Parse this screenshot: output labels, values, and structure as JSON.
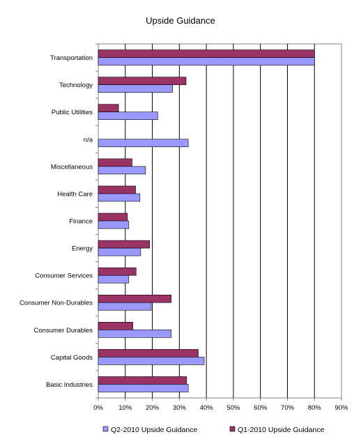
{
  "chart_data": {
    "type": "bar",
    "orientation": "horizontal",
    "title": "Upside Guidance",
    "xlabel": "",
    "ylabel": "",
    "xlim": [
      0,
      90
    ],
    "x_ticks": [
      "0%",
      "10%",
      "20%",
      "30%",
      "40%",
      "50%",
      "60%",
      "70%",
      "80%",
      "90%"
    ],
    "grid": "vertical",
    "legend_position": "bottom",
    "categories": [
      "Transportation",
      "Technology",
      "Public Utilities",
      "n/a",
      "Miscellaneous",
      "Health Care",
      "Finance",
      "Energy",
      "Consumer Services",
      "Consumer Non-Durables",
      "Consumer Durables",
      "Capital Goods",
      "Basic Industries"
    ],
    "series": [
      {
        "name": "Q1-2010 Upside Guidance",
        "color": "#993366",
        "values": [
          80,
          32.5,
          7.5,
          null,
          12.5,
          13.8,
          10.8,
          19,
          14,
          27,
          12.8,
          37,
          32.7
        ]
      },
      {
        "name": "Q2-2010 Upside Guidance",
        "color": "#9999ff",
        "values": [
          80,
          27.5,
          22,
          33.3,
          17.5,
          15.4,
          11.3,
          15.7,
          11.3,
          19.6,
          27,
          39.2,
          33.3
        ]
      }
    ],
    "legend_order": [
      "Q2-2010 Upside Guidance",
      "Q1-2010 Upside Guidance"
    ]
  }
}
